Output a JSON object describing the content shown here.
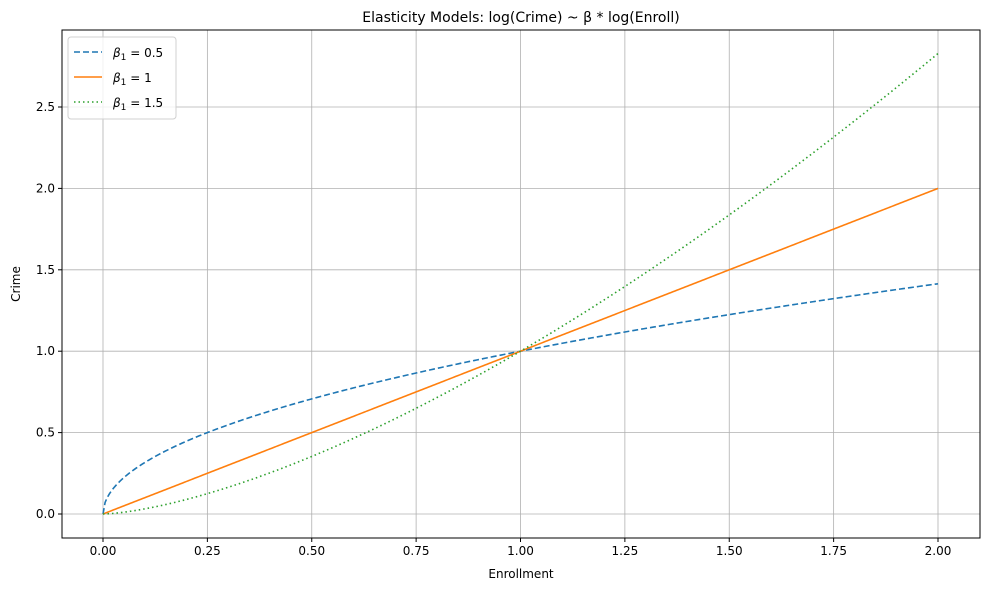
{
  "chart_data": {
    "type": "line",
    "title": "Elasticity Models: log(Crime) ~ β * log(Enroll)",
    "xlabel": "Enrollment",
    "ylabel": "Crime",
    "xlim": [
      -0.1,
      2.1
    ],
    "ylim": [
      -0.14,
      2.96
    ],
    "grid": true,
    "legend_position": "upper left",
    "x_ticks": [
      "0.00",
      "0.25",
      "0.50",
      "0.75",
      "1.00",
      "1.25",
      "1.50",
      "1.75",
      "2.00"
    ],
    "y_ticks": [
      "0.0",
      "0.5",
      "1.0",
      "1.5",
      "2.0",
      "2.5"
    ],
    "x": [
      0,
      0.01,
      0.05,
      0.1,
      0.25,
      0.5,
      0.75,
      1.0,
      1.25,
      1.5,
      1.75,
      2.0
    ],
    "series": [
      {
        "name": "β1 = 0.5",
        "label_base": "β",
        "label_sub": "1",
        "label_rest": " = 0.5",
        "color": "#1f77b4",
        "style": "dashed",
        "exponent": 0.5,
        "values": [
          0,
          0.1,
          0.224,
          0.316,
          0.5,
          0.707,
          0.866,
          1.0,
          1.118,
          1.225,
          1.323,
          1.414
        ]
      },
      {
        "name": "β1 = 1",
        "label_base": "β",
        "label_sub": "1",
        "label_rest": " = 1",
        "color": "#ff7f0e",
        "style": "solid",
        "exponent": 1,
        "values": [
          0,
          0.01,
          0.05,
          0.1,
          0.25,
          0.5,
          0.75,
          1.0,
          1.25,
          1.5,
          1.75,
          2.0
        ]
      },
      {
        "name": "β1 = 1.5",
        "label_base": "β",
        "label_sub": "1",
        "label_rest": " = 1.5",
        "color": "#2ca02c",
        "style": "dotted",
        "exponent": 1.5,
        "values": [
          0,
          0.001,
          0.011,
          0.032,
          0.125,
          0.354,
          0.65,
          1.0,
          1.398,
          1.837,
          2.315,
          2.828
        ]
      }
    ]
  }
}
